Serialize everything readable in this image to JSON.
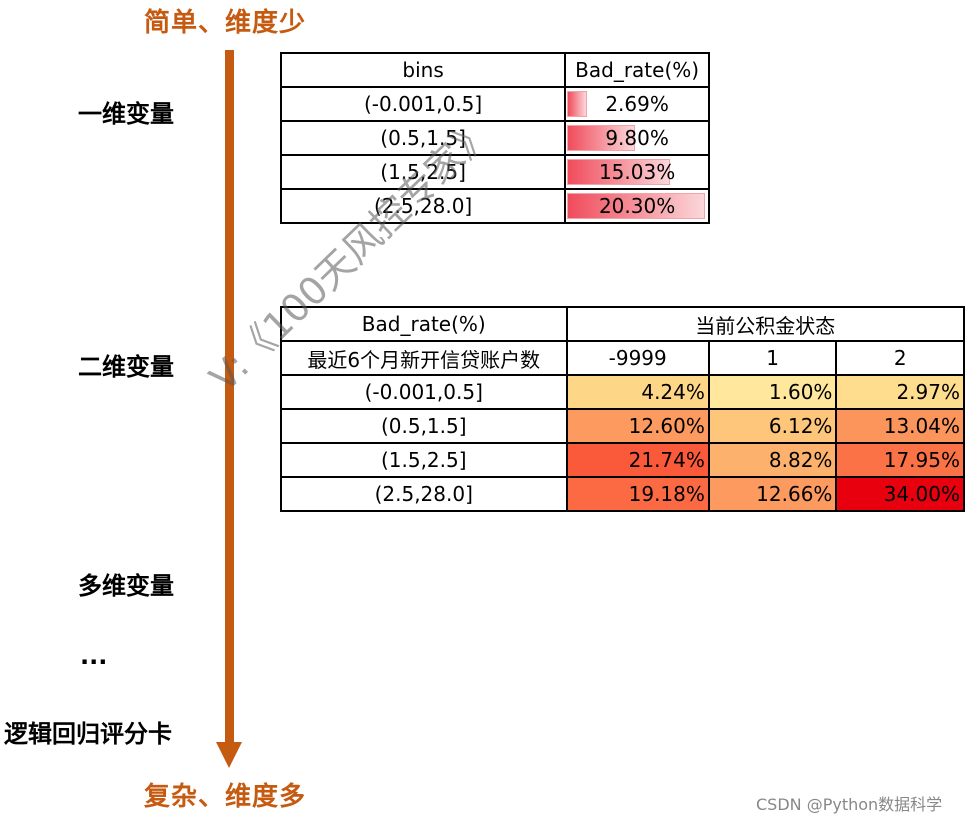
{
  "header": {
    "top_label": "简单、维度少",
    "bottom_label": "复杂、维度多"
  },
  "levels": [
    "一维变量",
    "二维变量",
    "多维变量",
    "...",
    "逻辑回归评分卡"
  ],
  "table1": {
    "headers": [
      "bins",
      "Bad_rate(%)"
    ],
    "rows": [
      {
        "bin": "(-0.001,0.5]",
        "rate": "2.69%",
        "value": 2.69
      },
      {
        "bin": "(0.5,1.5]",
        "rate": "9.80%",
        "value": 9.8
      },
      {
        "bin": "(1.5,2.5]",
        "rate": "15.03%",
        "value": 15.03
      },
      {
        "bin": "(2.5,28.0]",
        "rate": "20.30%",
        "value": 20.3
      }
    ]
  },
  "table2": {
    "corner_top": "Bad_rate(%)",
    "group_header": "当前公积金状态",
    "corner_bottom": "最近6个月新开信贷账户数",
    "columns": [
      "-9999",
      "1",
      "2"
    ],
    "rows": [
      {
        "bin": "(-0.001,0.5]",
        "cells": [
          {
            "text": "4.24%",
            "color": "#fed687"
          },
          {
            "text": "1.60%",
            "color": "#ffe89d"
          },
          {
            "text": "2.97%",
            "color": "#fedd8f"
          }
        ]
      },
      {
        "bin": "(0.5,1.5]",
        "cells": [
          {
            "text": "12.60%",
            "color": "#fc9a5f"
          },
          {
            "text": "6.12%",
            "color": "#fdc67a"
          },
          {
            "text": "13.04%",
            "color": "#fc955c"
          }
        ]
      },
      {
        "bin": "(1.5,2.5]",
        "cells": [
          {
            "text": "21.74%",
            "color": "#fa5a3a"
          },
          {
            "text": "8.82%",
            "color": "#fcb26c"
          },
          {
            "text": "17.95%",
            "color": "#fb7247"
          }
        ]
      },
      {
        "bin": "(2.5,28.0]",
        "cells": [
          {
            "text": "19.18%",
            "color": "#fb6a43"
          },
          {
            "text": "12.66%",
            "color": "#fc9a5f"
          },
          {
            "text": "34.00%",
            "color": "#e8000e"
          }
        ]
      }
    ]
  },
  "watermark": "V:《100天风控专家》",
  "footer": "CSDN @Python数据科学"
}
